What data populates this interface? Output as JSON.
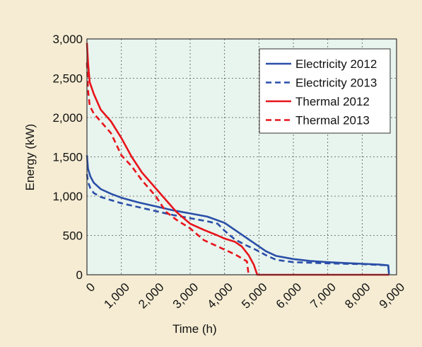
{
  "chart_data": {
    "type": "line",
    "title": "",
    "xlabel": "Time (h)",
    "ylabel": "Energy (kW)",
    "xlim": [
      0,
      9000
    ],
    "ylim": [
      0,
      3000
    ],
    "x_ticks": [
      0,
      1000,
      2000,
      3000,
      4000,
      5000,
      6000,
      7000,
      8000,
      9000
    ],
    "x_tick_labels": [
      "0",
      "1,000",
      "2,000",
      "3,000",
      "4,000",
      "5,000",
      "6,000",
      "7,000",
      "8,000",
      "9,000"
    ],
    "y_ticks": [
      0,
      500,
      1000,
      1500,
      2000,
      2500,
      3000
    ],
    "y_tick_labels": [
      "0",
      "500",
      "1,000",
      "1,500",
      "2,000",
      "2,500",
      "3,000"
    ],
    "grid": true,
    "legend_position": "top-right",
    "background_color": "#f5ecd3",
    "plot_background_color": "#e8f4ee",
    "series": [
      {
        "name": "Electricity 2012",
        "color": "#2a4fa8",
        "style": "solid",
        "points": [
          [
            0,
            1520
          ],
          [
            30,
            1350
          ],
          [
            100,
            1250
          ],
          [
            200,
            1170
          ],
          [
            400,
            1090
          ],
          [
            700,
            1030
          ],
          [
            1000,
            980
          ],
          [
            1500,
            920
          ],
          [
            2000,
            870
          ],
          [
            2500,
            820
          ],
          [
            3000,
            780
          ],
          [
            3500,
            740
          ],
          [
            4000,
            660
          ],
          [
            4300,
            570
          ],
          [
            4600,
            480
          ],
          [
            4900,
            390
          ],
          [
            5200,
            300
          ],
          [
            5500,
            240
          ],
          [
            6000,
            200
          ],
          [
            6500,
            175
          ],
          [
            7000,
            160
          ],
          [
            7500,
            150
          ],
          [
            8000,
            140
          ],
          [
            8500,
            130
          ],
          [
            8760,
            120
          ],
          [
            8780,
            0
          ]
        ]
      },
      {
        "name": "Electricity 2013",
        "color": "#2a4fa8",
        "style": "dashed",
        "points": [
          [
            0,
            1280
          ],
          [
            30,
            1180
          ],
          [
            100,
            1100
          ],
          [
            200,
            1040
          ],
          [
            400,
            990
          ],
          [
            700,
            950
          ],
          [
            1000,
            910
          ],
          [
            1500,
            860
          ],
          [
            2000,
            810
          ],
          [
            2500,
            760
          ],
          [
            3000,
            720
          ],
          [
            3500,
            680
          ],
          [
            3800,
            650
          ],
          [
            4000,
            560
          ],
          [
            4300,
            450
          ],
          [
            4600,
            380
          ],
          [
            4900,
            320
          ],
          [
            5200,
            250
          ],
          [
            5500,
            190
          ],
          [
            6000,
            160
          ],
          [
            7000,
            145
          ],
          [
            8000,
            135
          ],
          [
            8760,
            120
          ],
          [
            8780,
            0
          ]
        ]
      },
      {
        "name": "Thermal 2012",
        "color": "#e8141b",
        "style": "solid",
        "points": [
          [
            0,
            2950
          ],
          [
            30,
            2700
          ],
          [
            80,
            2450
          ],
          [
            200,
            2300
          ],
          [
            400,
            2100
          ],
          [
            700,
            1950
          ],
          [
            1000,
            1740
          ],
          [
            1300,
            1500
          ],
          [
            1600,
            1300
          ],
          [
            2000,
            1100
          ],
          [
            2300,
            950
          ],
          [
            2600,
            800
          ],
          [
            3000,
            650
          ],
          [
            3400,
            570
          ],
          [
            3800,
            500
          ],
          [
            4000,
            460
          ],
          [
            4300,
            420
          ],
          [
            4500,
            360
          ],
          [
            4700,
            250
          ],
          [
            4850,
            130
          ],
          [
            4950,
            0
          ],
          [
            8780,
            0
          ]
        ]
      },
      {
        "name": "Thermal 2013",
        "color": "#e8141b",
        "style": "dashed",
        "points": [
          [
            0,
            2700
          ],
          [
            30,
            2350
          ],
          [
            80,
            2150
          ],
          [
            200,
            2050
          ],
          [
            400,
            1950
          ],
          [
            700,
            1800
          ],
          [
            1000,
            1520
          ],
          [
            1300,
            1380
          ],
          [
            1600,
            1200
          ],
          [
            2000,
            1000
          ],
          [
            2300,
            800
          ],
          [
            2600,
            700
          ],
          [
            3000,
            590
          ],
          [
            3400,
            440
          ],
          [
            3800,
            360
          ],
          [
            4000,
            320
          ],
          [
            4300,
            260
          ],
          [
            4500,
            210
          ],
          [
            4650,
            170
          ],
          [
            4700,
            0
          ]
        ]
      }
    ]
  }
}
